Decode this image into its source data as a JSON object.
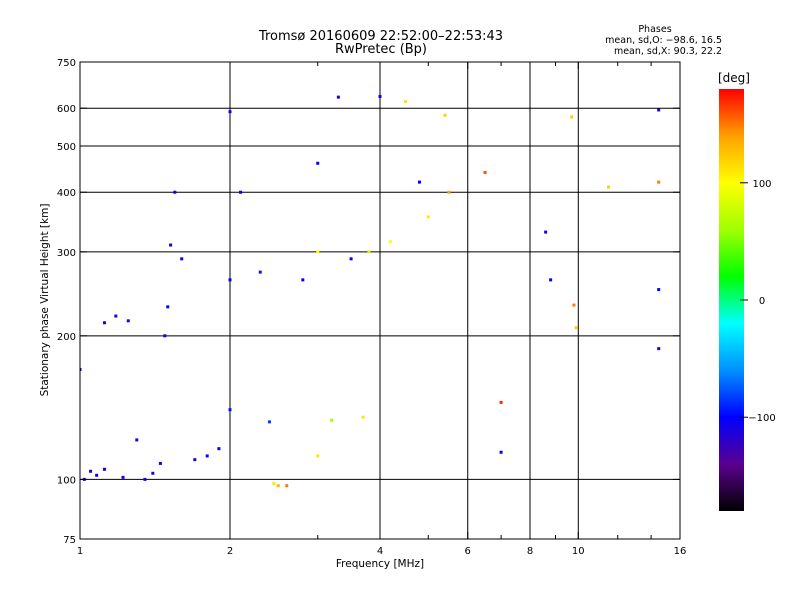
{
  "chart_data": {
    "type": "scatter",
    "title": "Tromsø 20160609 22:52:00–22:53:43",
    "subtitle": "RwPretec (Bp)",
    "xlabel": "Frequency [MHz]",
    "ylabel": "Stationary phase Virtual Height [km]",
    "x_scale": "log2",
    "y_scale": "log",
    "xlim": [
      1,
      16
    ],
    "ylim": [
      75,
      750
    ],
    "x_ticks": [
      1,
      2,
      4,
      6,
      8,
      10,
      16
    ],
    "x_tick_labels": [
      "1",
      "2",
      "4",
      "6",
      "8",
      "10",
      "16"
    ],
    "x_minor_ticks": [
      3,
      5,
      7,
      9,
      12,
      14
    ],
    "x_grid": [
      2,
      4,
      6,
      8,
      10
    ],
    "y_ticks": [
      75,
      100,
      200,
      300,
      400,
      500,
      600,
      750
    ],
    "y_tick_labels": [
      "75",
      "100",
      "200",
      "300",
      "400",
      "500",
      "600",
      "750"
    ],
    "y_grid": [
      100,
      200,
      300,
      400,
      500,
      600
    ],
    "grid": true,
    "stats": {
      "header": "Phases",
      "line1": "mean, sd,O: −98.6, 16.5",
      "line2": "mean, sd,X:  90.3, 22.2"
    },
    "colorbar": {
      "label": "[deg]",
      "range": [
        -180,
        180
      ],
      "ticks": [
        100,
        0,
        -100
      ],
      "tick_labels": [
        "100",
        "0",
        "−100"
      ],
      "colors": [
        "#000000",
        "#5a0090",
        "#0000ff",
        "#0090ff",
        "#00ffff",
        "#00ff00",
        "#a0ff00",
        "#ffff00",
        "#ffa000",
        "#ff0000"
      ]
    },
    "series": [
      {
        "values": [
          {
            "x": 1.0,
            "y": 170,
            "phase": -110
          },
          {
            "x": 1.02,
            "y": 100,
            "phase": -110
          },
          {
            "x": 1.05,
            "y": 104,
            "phase": -110
          },
          {
            "x": 1.08,
            "y": 102,
            "phase": -110
          },
          {
            "x": 1.12,
            "y": 105,
            "phase": -110
          },
          {
            "x": 1.12,
            "y": 213,
            "phase": -110
          },
          {
            "x": 1.18,
            "y": 220,
            "phase": -115
          },
          {
            "x": 1.22,
            "y": 101,
            "phase": -110
          },
          {
            "x": 1.25,
            "y": 215,
            "phase": -110
          },
          {
            "x": 1.3,
            "y": 121,
            "phase": -110
          },
          {
            "x": 1.35,
            "y": 100,
            "phase": -110
          },
          {
            "x": 1.4,
            "y": 103,
            "phase": -110
          },
          {
            "x": 1.45,
            "y": 108,
            "phase": -110
          },
          {
            "x": 1.48,
            "y": 200,
            "phase": -110
          },
          {
            "x": 1.5,
            "y": 230,
            "phase": -105
          },
          {
            "x": 1.52,
            "y": 310,
            "phase": -105
          },
          {
            "x": 1.55,
            "y": 400,
            "phase": -105
          },
          {
            "x": 1.6,
            "y": 290,
            "phase": -105
          },
          {
            "x": 1.7,
            "y": 110,
            "phase": -110
          },
          {
            "x": 1.8,
            "y": 112,
            "phase": -105
          },
          {
            "x": 1.9,
            "y": 116,
            "phase": -100
          },
          {
            "x": 2.0,
            "y": 590,
            "phase": -105
          },
          {
            "x": 2.0,
            "y": 262,
            "phase": -100
          },
          {
            "x": 2.0,
            "y": 140,
            "phase": -95
          },
          {
            "x": 2.1,
            "y": 400,
            "phase": -100
          },
          {
            "x": 2.3,
            "y": 272,
            "phase": -95
          },
          {
            "x": 2.4,
            "y": 132,
            "phase": -85
          },
          {
            "x": 2.45,
            "y": 98,
            "phase": 110
          },
          {
            "x": 2.5,
            "y": 97,
            "phase": 130
          },
          {
            "x": 2.6,
            "y": 97,
            "phase": 150
          },
          {
            "x": 2.8,
            "y": 262,
            "phase": -100
          },
          {
            "x": 3.0,
            "y": 460,
            "phase": -100
          },
          {
            "x": 3.0,
            "y": 300,
            "phase": 100
          },
          {
            "x": 3.0,
            "y": 112,
            "phase": 110
          },
          {
            "x": 3.2,
            "y": 133,
            "phase": 60
          },
          {
            "x": 3.3,
            "y": 633,
            "phase": -110
          },
          {
            "x": 3.5,
            "y": 290,
            "phase": -100
          },
          {
            "x": 3.7,
            "y": 135,
            "phase": 110
          },
          {
            "x": 3.8,
            "y": 300,
            "phase": 110
          },
          {
            "x": 4.0,
            "y": 635,
            "phase": -110
          },
          {
            "x": 4.2,
            "y": 315,
            "phase": 100
          },
          {
            "x": 4.5,
            "y": 620,
            "phase": 110
          },
          {
            "x": 4.8,
            "y": 420,
            "phase": -100
          },
          {
            "x": 5.0,
            "y": 355,
            "phase": 110
          },
          {
            "x": 5.4,
            "y": 580,
            "phase": 120
          },
          {
            "x": 5.5,
            "y": 400,
            "phase": 140
          },
          {
            "x": 6.5,
            "y": 440,
            "phase": 160
          },
          {
            "x": 7.0,
            "y": 145,
            "phase": 170
          },
          {
            "x": 7.0,
            "y": 114,
            "phase": -100
          },
          {
            "x": 8.6,
            "y": 330,
            "phase": -110
          },
          {
            "x": 8.8,
            "y": 262,
            "phase": -100
          },
          {
            "x": 9.7,
            "y": 575,
            "phase": 120
          },
          {
            "x": 9.8,
            "y": 232,
            "phase": 150
          },
          {
            "x": 9.9,
            "y": 208,
            "phase": 120
          },
          {
            "x": 11.5,
            "y": 410,
            "phase": 120
          },
          {
            "x": 14.5,
            "y": 595,
            "phase": -110
          },
          {
            "x": 14.5,
            "y": 420,
            "phase": 150
          },
          {
            "x": 14.5,
            "y": 250,
            "phase": -100
          },
          {
            "x": 14.5,
            "y": 188,
            "phase": -110
          }
        ]
      }
    ]
  }
}
